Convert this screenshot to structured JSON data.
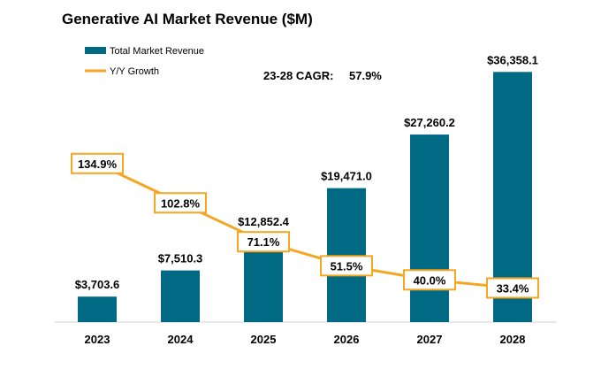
{
  "chart_data": {
    "type": "bar",
    "title": "Generative AI Market Revenue ($M)",
    "categories": [
      "2023",
      "2024",
      "2025",
      "2026",
      "2027",
      "2028"
    ],
    "series": [
      {
        "name": "Total Market Revenue",
        "kind": "bar",
        "values": [
          3703.6,
          7510.3,
          12852.4,
          19471.0,
          27260.2,
          36358.1
        ],
        "labels": [
          "$3,703.6",
          "$7,510.3",
          "$12,852.4",
          "$19,471.0",
          "$27,260.2",
          "$36,358.1"
        ],
        "color": "#006a85"
      },
      {
        "name": "Y/Y Growth",
        "kind": "line",
        "values": [
          134.9,
          102.8,
          71.1,
          51.5,
          40.0,
          33.4
        ],
        "labels": [
          "134.9%",
          "102.8%",
          "71.1%",
          "51.5%",
          "40.0%",
          "33.4%"
        ],
        "color": "#f5a623"
      }
    ],
    "annotation": {
      "label": "23-28 CAGR:",
      "value": "57.9%"
    },
    "legend_position": "top-left",
    "grid": false,
    "y_axis_visible": false
  }
}
